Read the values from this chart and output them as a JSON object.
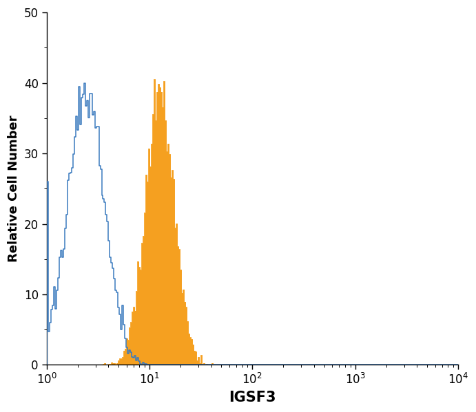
{
  "title": "",
  "xlabel": "IGSF3",
  "ylabel": "Relative Cell Number",
  "xlim_log": [
    1.0,
    10000.0
  ],
  "ylim": [
    0,
    50
  ],
  "yticks": [
    0,
    10,
    20,
    30,
    40,
    50
  ],
  "blue_color": "#3a7abf",
  "orange_color": "#F5A020",
  "background_color": "#ffffff",
  "xlabel_fontsize": 15,
  "ylabel_fontsize": 13,
  "tick_fontsize": 12,
  "blue_mean_log": 0.38,
  "blue_sigma_log": 0.18,
  "blue_peak": 40.0,
  "blue_start_y": 26.0,
  "orange_mean_log": 1.1,
  "orange_sigma_log": 0.14,
  "orange_peak": 40.5,
  "n_bins": 300
}
